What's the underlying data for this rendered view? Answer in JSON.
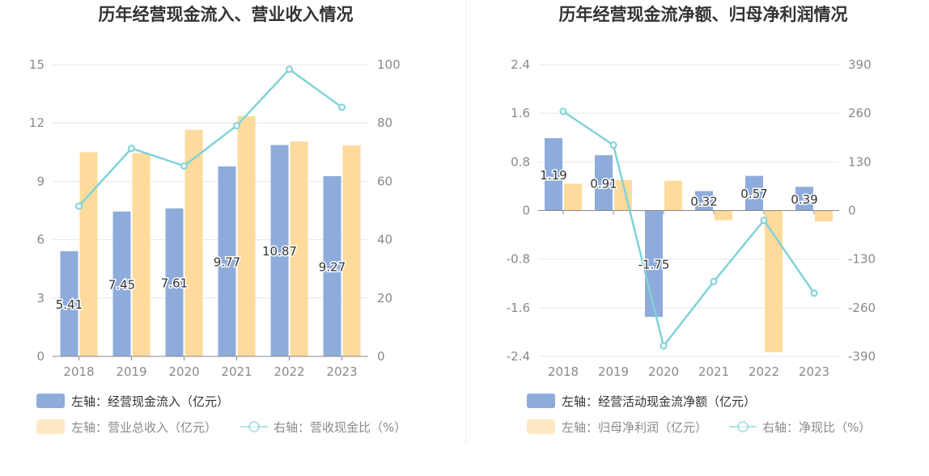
{
  "colors": {
    "bar_primary": "#8eacdb",
    "bar_secondary": "#fedb9c",
    "line": "#7fd3d9",
    "grid": "#e3e6ee",
    "axis": "#888888",
    "text": "#333333",
    "muted": "#8a8a8a"
  },
  "chart_data": [
    {
      "type": "bar",
      "title": "历年经营现金流入、营业收入情况",
      "categories": [
        "2018",
        "2019",
        "2020",
        "2021",
        "2022",
        "2023"
      ],
      "left_axis": {
        "ylim": [
          0,
          15
        ],
        "ticks": [
          "0",
          "3",
          "6",
          "9",
          "12",
          "15"
        ]
      },
      "right_axis": {
        "ylim": [
          0,
          100
        ],
        "ticks": [
          "0",
          "20",
          "40",
          "60",
          "80",
          "100"
        ]
      },
      "series": [
        {
          "name": "左轴：经营现金流入（亿元）",
          "axis": "left",
          "kind": "bar",
          "values": [
            5.41,
            7.45,
            7.61,
            9.77,
            10.87,
            9.27
          ],
          "labels": [
            "5.41",
            "7.45",
            "7.61",
            "9.77",
            "10.87",
            "9.27"
          ]
        },
        {
          "name": "左轴：营业总收入（亿元）",
          "axis": "left",
          "kind": "bar",
          "values": [
            10.5,
            10.45,
            11.65,
            12.35,
            11.05,
            10.85
          ]
        },
        {
          "name": "右轴：营收现金比（%）",
          "axis": "right",
          "kind": "line",
          "values": [
            51.5,
            71.3,
            65.3,
            79.1,
            98.4,
            85.4
          ]
        }
      ],
      "grid": true,
      "legend_position": "bottom"
    },
    {
      "type": "bar",
      "title": "历年经营现金流净额、归母净利润情况",
      "categories": [
        "2018",
        "2019",
        "2020",
        "2021",
        "2022",
        "2023"
      ],
      "left_axis": {
        "ylim": [
          -2.4,
          2.4
        ],
        "ticks": [
          "-2.4",
          "-1.6",
          "-0.8",
          "0",
          "0.8",
          "1.6",
          "2.4"
        ]
      },
      "right_axis": {
        "ylim": [
          -390,
          390
        ],
        "ticks": [
          "-390",
          "-260",
          "-130",
          "0",
          "130",
          "260",
          "390"
        ]
      },
      "series": [
        {
          "name": "左轴：经营活动现金流净额（亿元）",
          "axis": "left",
          "kind": "bar",
          "values": [
            1.19,
            0.91,
            -1.75,
            0.32,
            0.57,
            0.39
          ],
          "labels": [
            "1.19",
            "0.91",
            "-1.75",
            "0.32",
            "0.57",
            "0.39"
          ]
        },
        {
          "name": "左轴：归母净利润（亿元）",
          "axis": "left",
          "kind": "bar",
          "values": [
            0.44,
            0.5,
            0.49,
            -0.16,
            -2.33,
            -0.18
          ]
        },
        {
          "name": "右轴：净现比（%）",
          "axis": "right",
          "kind": "line",
          "values": [
            265,
            175,
            -362,
            -190,
            -26,
            -221
          ]
        }
      ],
      "grid": true,
      "legend_position": "bottom"
    }
  ]
}
